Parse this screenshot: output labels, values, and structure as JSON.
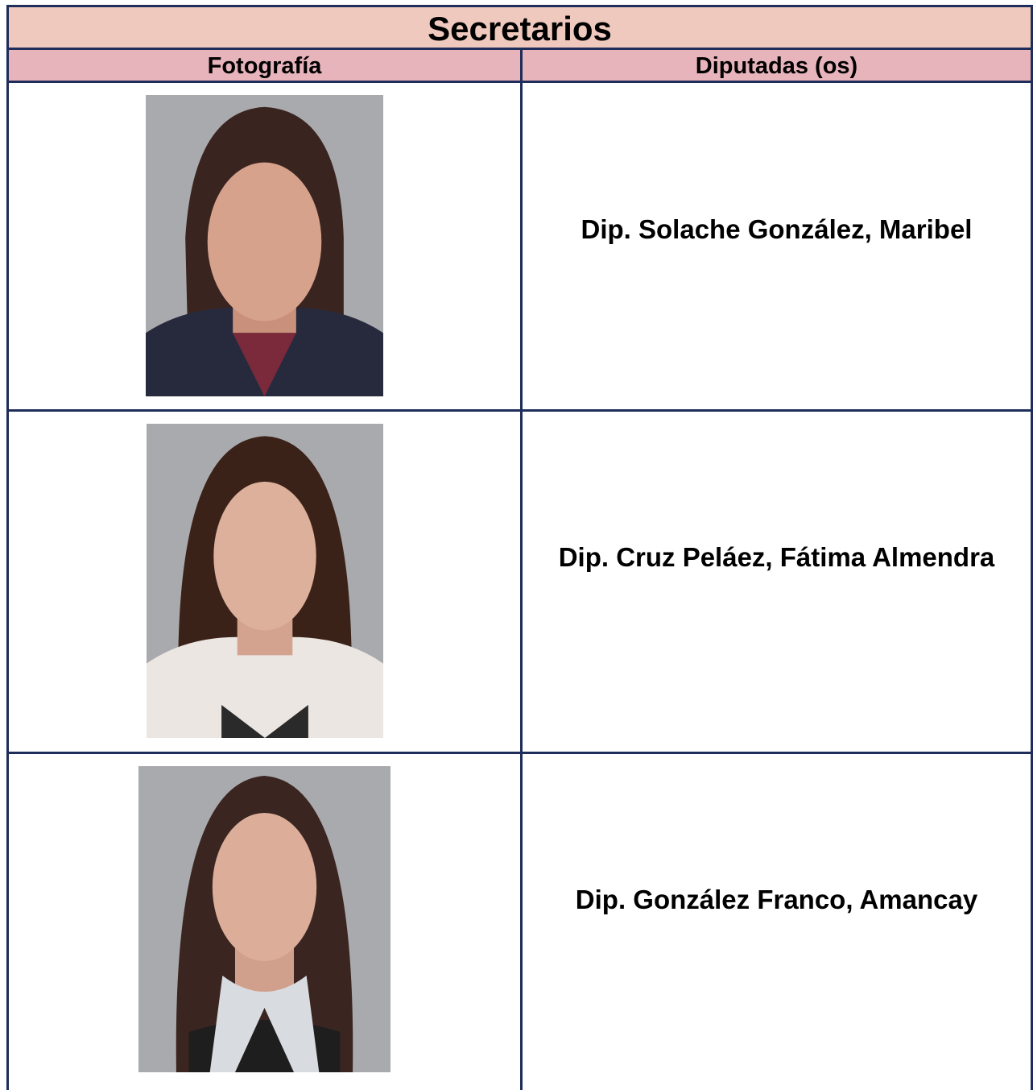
{
  "table": {
    "title": "Secretarios",
    "headers": [
      "Fotografía",
      "Diputadas (os)"
    ],
    "rows": [
      {
        "name": "Dip. Solache González, Maribel"
      },
      {
        "name": "Dip. Cruz Peláez, Fátima Almendra"
      },
      {
        "name": "Dip. González Franco, Amancay"
      }
    ]
  }
}
